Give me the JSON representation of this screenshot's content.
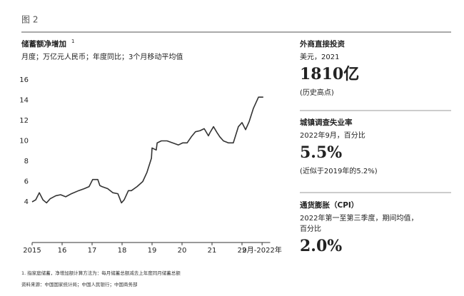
{
  "figure_label": "图 2",
  "chart_data": {
    "type": "line",
    "title": "储蓄额净增加",
    "title_note": "1",
    "subtitle": "月度；万亿元人民币；年度同比；3个月移动平均值",
    "x": [
      2015.0,
      2015.12,
      2015.24,
      2015.36,
      2015.48,
      2015.6,
      2015.79,
      2015.95,
      2016.12,
      2016.31,
      2016.55,
      2016.74,
      2016.9,
      2017.02,
      2017.19,
      2017.26,
      2017.33,
      2017.52,
      2017.69,
      2017.86,
      2017.98,
      2018.07,
      2018.21,
      2018.31,
      2018.5,
      2018.69,
      2018.83,
      2018.98,
      2019.0,
      2019.14,
      2019.17,
      2019.31,
      2019.5,
      2019.69,
      2019.88,
      2020.02,
      2020.17,
      2020.31,
      2020.45,
      2020.6,
      2020.74,
      2020.88,
      2020.93,
      2021.05,
      2021.17,
      2021.26,
      2021.38,
      2021.55,
      2021.71,
      2021.88,
      2022.0,
      2022.12,
      2022.24,
      2022.38,
      2022.55,
      2022.71
    ],
    "series": [
      {
        "name": "储蓄额净增加",
        "color": "#333333",
        "values": [
          4.0,
          4.2,
          4.9,
          4.2,
          3.9,
          4.3,
          4.6,
          4.7,
          4.5,
          4.8,
          5.1,
          5.3,
          5.5,
          6.2,
          6.2,
          5.6,
          5.5,
          5.3,
          4.9,
          4.8,
          3.9,
          4.2,
          5.1,
          5.1,
          5.5,
          6.0,
          6.9,
          8.3,
          9.3,
          9.1,
          9.8,
          10.0,
          10.0,
          9.8,
          9.6,
          9.8,
          9.8,
          10.4,
          10.9,
          11.0,
          11.2,
          10.5,
          10.8,
          11.4,
          10.8,
          10.4,
          10.0,
          9.8,
          9.8,
          11.4,
          11.8,
          11.1,
          11.9,
          13.2,
          14.3,
          14.3
        ]
      }
    ],
    "xlim": [
      2015,
      2022.75
    ],
    "xticks": [
      2015,
      {
        "value": 2016,
        "label": "16"
      },
      {
        "value": 2017,
        "label": "17"
      },
      {
        "value": 2018,
        "label": "18"
      },
      {
        "value": 2019,
        "label": "19"
      },
      {
        "value": 2020,
        "label": "20"
      },
      {
        "value": 2021,
        "label": "21"
      },
      {
        "value": 2022,
        "label": "22"
      },
      {
        "value": 2022.67,
        "label": "9月-2022年"
      }
    ],
    "ylim": [
      0,
      16
    ],
    "yticks": [
      4,
      6,
      8,
      10,
      12,
      14,
      16
    ],
    "grid": false
  },
  "side_panel": [
    {
      "title": "外商直接投资",
      "subtitle": [
        "美元，2021"
      ],
      "value": "1810亿",
      "note": "(历史高点)"
    },
    {
      "title": "城镇调查失业率",
      "subtitle": [
        "2022年9月，百分比"
      ],
      "value": "5.5%",
      "note": "(近似于2019年的5.2%)"
    },
    {
      "title": "通货膨胀（CPI）",
      "subtitle": [
        "2022年第一至第三季度，期间均值，",
        "百分比"
      ],
      "value": "2.0%"
    }
  ],
  "footnotes": [
    "1. 指家庭储蓄，净增加额计算方法为：每月储蓄总额减去上年度同月储蓄总额",
    "资料来源：中国国家统计局；中国人民银行；中国商务部"
  ]
}
